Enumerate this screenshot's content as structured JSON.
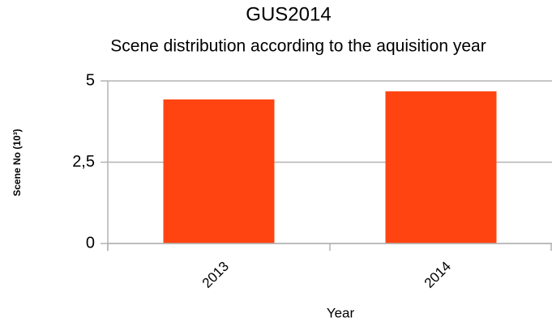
{
  "chart_data": {
    "type": "bar",
    "title": "GUS2014",
    "subtitle": "Scene distribution according to the aquisition year",
    "x_label": "Year",
    "y_label": "Scene No (10³)",
    "categories": [
      "2013",
      "2014"
    ],
    "values": [
      4.43,
      4.68
    ],
    "color": "#ff4411",
    "ylim": [
      0,
      5
    ],
    "yticks": [
      0,
      {
        "value": 2.5,
        "label": "2,5"
      },
      5
    ],
    "grid": true
  }
}
